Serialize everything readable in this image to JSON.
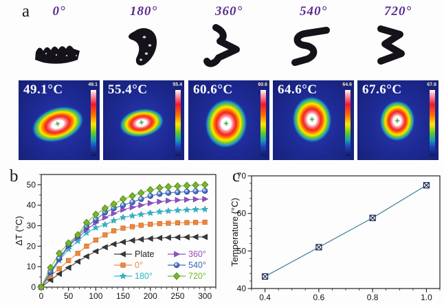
{
  "panels": {
    "a_label": "a",
    "b_label": "b",
    "c_label": "c"
  },
  "panel_a": {
    "angle_color": "#5b2d8e",
    "angles": [
      "0°",
      "180°",
      "360°",
      "540°",
      "720°"
    ],
    "crosshair_glyph": "+",
    "thermal": [
      {
        "temp": "49.1°C",
        "bar_max": "49.1"
      },
      {
        "temp": "55.4°C",
        "bar_max": "55.4"
      },
      {
        "temp": "60.6°C",
        "bar_max": "60.6"
      },
      {
        "temp": "64.6°C",
        "bar_max": "64.6"
      },
      {
        "temp": "67.6°C",
        "bar_max": "67.6"
      }
    ]
  },
  "chart_data": [
    {
      "type": "line",
      "title": "",
      "xlabel": "",
      "ylabel": "ΔT (°C)",
      "xlim": [
        0,
        320
      ],
      "ylim": [
        0,
        55
      ],
      "xticks": [
        0,
        50,
        100,
        150,
        200,
        250,
        300
      ],
      "yticks": [
        0,
        10,
        20,
        30,
        40,
        50
      ],
      "xminor": 10,
      "yminor": 5,
      "grid": false,
      "legend_position": "bottom-right",
      "x": [
        0,
        17,
        33,
        50,
        67,
        83,
        100,
        117,
        133,
        150,
        167,
        183,
        200,
        217,
        233,
        250,
        267,
        283,
        300
      ],
      "series": [
        {
          "name": "Plate",
          "color": "#3a3a3a",
          "edge": "#1a1a1a",
          "marker": "triangle-left",
          "values": [
            0,
            3.5,
            6.5,
            9.5,
            12.5,
            15,
            17.5,
            19.5,
            21,
            22,
            22.8,
            23.3,
            23.7,
            24,
            24.2,
            24.3,
            24.4,
            24.5,
            24.5
          ]
        },
        {
          "name": "0°",
          "color": "#f0863c",
          "edge": "#c2601a",
          "marker": "square",
          "values": [
            0,
            5.5,
            9,
            13,
            16.5,
            20,
            23,
            25.5,
            27.5,
            28.8,
            29.5,
            30.2,
            30.7,
            31,
            31.2,
            31.4,
            31.5,
            31.6,
            31.7
          ]
        },
        {
          "name": "180°",
          "color": "#2cb8c8",
          "edge": "#108898",
          "marker": "star",
          "values": [
            0,
            6.5,
            13,
            18.5,
            22.5,
            26.5,
            29,
            30.5,
            32.5,
            34,
            34.8,
            35.5,
            36.2,
            36.8,
            37.2,
            37.5,
            37.7,
            37.9,
            38
          ]
        },
        {
          "name": "360°",
          "color": "#9050c0",
          "edge": "#6a3aa0",
          "marker": "triangle-right",
          "values": [
            0,
            7,
            13.5,
            20,
            24,
            28,
            31.5,
            34,
            36,
            37.8,
            39,
            40,
            41,
            41.7,
            42.2,
            42.5,
            42.7,
            42.9,
            43
          ]
        },
        {
          "name": "540°",
          "color": "#3a6ab8",
          "edge": "#1a3a8a",
          "marker": "ball",
          "values": [
            0,
            7.5,
            14,
            20.5,
            25,
            29.5,
            33,
            36.5,
            38.5,
            40,
            41.5,
            43,
            44.5,
            45.5,
            46,
            46.3,
            46.6,
            46.8,
            47
          ]
        },
        {
          "name": "720°",
          "color": "#76b82a",
          "edge": "#4a7a10",
          "marker": "diamond",
          "values": [
            0,
            9.5,
            16.5,
            21.5,
            25.5,
            31.5,
            35.5,
            38.5,
            40.5,
            43,
            44.5,
            46,
            47.5,
            48.5,
            49,
            49.3,
            49.6,
            49.8,
            50
          ]
        }
      ],
      "legend": {
        "columns": [
          [
            "Plate",
            "0°",
            "180°"
          ],
          [
            "360°",
            "540°",
            "720°"
          ]
        ]
      }
    },
    {
      "type": "scatter",
      "title": "",
      "xlabel": "",
      "ylabel": "Temperature (°C)",
      "xlim": [
        0.35,
        1.05
      ],
      "ylim": [
        40,
        70
      ],
      "xticks": [
        0.4,
        0.6,
        0.8,
        1.0
      ],
      "xtick_labels": [
        "0.4",
        "0.6",
        "0.8",
        "1.0"
      ],
      "yticks": [
        40,
        50,
        60,
        70
      ],
      "xminor": 0.05,
      "yminor": 2,
      "grid": false,
      "x": [
        0.4,
        0.6,
        0.8,
        1.0
      ],
      "series": [
        {
          "name": "temperature",
          "color": "#2e6f8e",
          "edge": "#1a2550",
          "marker": "crossed-square",
          "values": [
            43.2,
            51.0,
            58.8,
            67.5
          ]
        }
      ]
    }
  ]
}
